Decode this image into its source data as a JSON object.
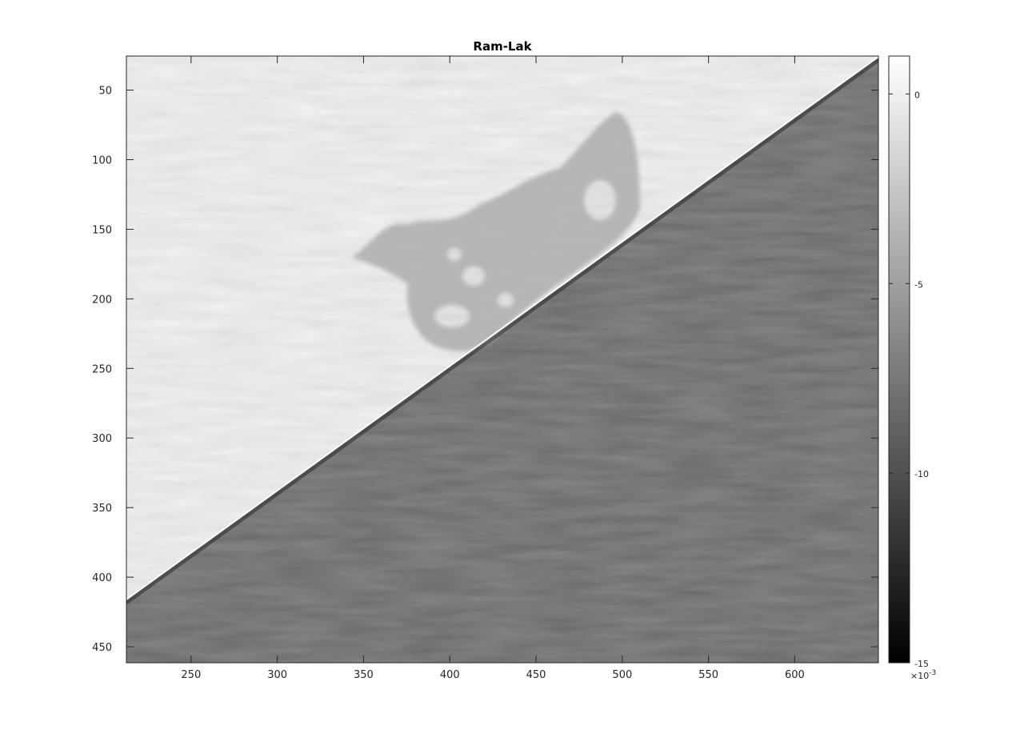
{
  "chart_data": {
    "type": "heatmap",
    "title": "Ram-Lak",
    "xlabel": "",
    "ylabel": "",
    "xlim": [
      212.5,
      648.5
    ],
    "ylim": [
      461.5,
      25.5
    ],
    "y_reversed": true,
    "x_ticks": [
      250,
      300,
      350,
      400,
      450,
      500,
      550,
      600
    ],
    "y_ticks": [
      50,
      100,
      150,
      200,
      250,
      300,
      350,
      400,
      450
    ],
    "colormap": "gray",
    "colorbar": {
      "clim": [
        -0.015,
        0.001
      ],
      "ticks": [
        0,
        -5,
        -10,
        -15
      ],
      "exponent_label": "×10",
      "exponent_power": "-3"
    },
    "boundary_line": {
      "x": [
        212.5,
        648.5
      ],
      "y": [
        416,
        26
      ]
    },
    "upper_region_value": -0.0005,
    "lower_region_value": -0.0095,
    "inclusion_value": -0.0045,
    "grid": false
  },
  "colors": {
    "axis": "#262626",
    "background": "#ffffff",
    "upper_tone": "#f2f2f2",
    "lower_tone": "#6a6a6a",
    "inclusion_tone": "#b4b4b4",
    "edge_bright": "#ffffff",
    "edge_dark": "#2a2a2a"
  }
}
